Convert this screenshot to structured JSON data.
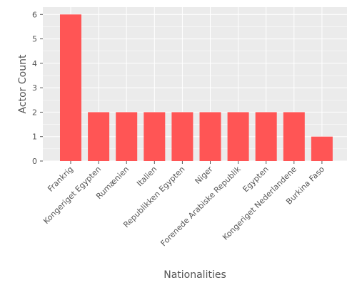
{
  "chart_data": {
    "type": "bar",
    "title": "",
    "xlabel": "Nationalities",
    "ylabel": "Actor Count",
    "categories": [
      "Frankrig",
      "Kongeriget Egypten",
      "Rumænien",
      "Italien",
      "Republikken Egypten",
      "Niger",
      "Forenede Arabiske Republik",
      "Egypten",
      "Kongeriget Nederlandene",
      "Burkina Faso"
    ],
    "values": [
      6,
      2,
      2,
      2,
      2,
      2,
      2,
      2,
      2,
      1
    ],
    "ylim": [
      0,
      6.3
    ],
    "yticks": [
      0,
      1,
      2,
      3,
      4,
      5,
      6
    ],
    "grid": true,
    "legend": "none",
    "colors": {
      "bar": "#FF5555",
      "panel_background": "#EBEBEB",
      "grid": "#FFFFFF",
      "text": "#555555"
    }
  }
}
